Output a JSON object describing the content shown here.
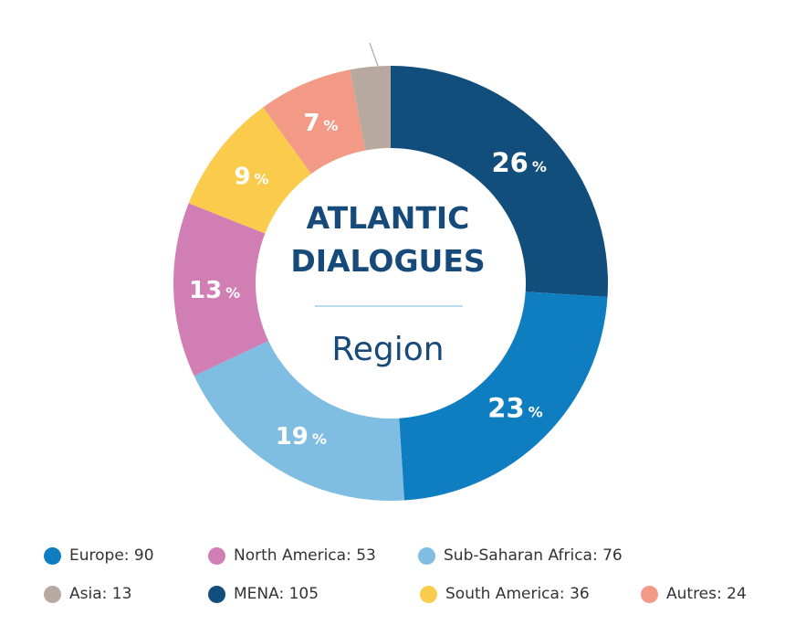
{
  "chart_data": {
    "type": "pie",
    "donut": true,
    "title": "ATLANTIC DIALOGUES",
    "title_lines": [
      "ATLANTIC",
      "DIALOGUES"
    ],
    "subtitle": "Region",
    "unit": "%",
    "slices": [
      {
        "key": "mena",
        "name": "MENA",
        "percent": 26,
        "count": 105,
        "color": "#124e7c"
      },
      {
        "key": "europe",
        "name": "Europe",
        "percent": 23,
        "count": 90,
        "color": "#0f7ec0"
      },
      {
        "key": "subsaharan",
        "name": "Sub-Saharan Africa",
        "percent": 19,
        "count": 76,
        "color": "#7fbde2"
      },
      {
        "key": "northamerica",
        "name": "North America",
        "percent": 13,
        "count": 53,
        "color": "#d07eb4"
      },
      {
        "key": "southamerica",
        "name": "South America",
        "percent": 9,
        "count": 36,
        "color": "#fbcb4c"
      },
      {
        "key": "autres",
        "name": "Autres",
        "percent": 7,
        "count": 24,
        "color": "#f39a86"
      },
      {
        "key": "asia",
        "name": "Asia",
        "percent": 3,
        "count": 13,
        "color": "#b8a9a0"
      }
    ],
    "legend": [
      {
        "key": "europe",
        "text": "Europe: 90"
      },
      {
        "key": "northamerica",
        "text": "North America: 53"
      },
      {
        "key": "subsaharan",
        "text": "Sub-Saharan Africa: 76"
      },
      {
        "key": "asia",
        "text": "Asia: 13"
      },
      {
        "key": "mena",
        "text": "MENA: 105"
      },
      {
        "key": "southamerica",
        "text": "South America: 36"
      },
      {
        "key": "autres",
        "text": "Autres: 24"
      }
    ],
    "legend_placement": "bottom"
  }
}
